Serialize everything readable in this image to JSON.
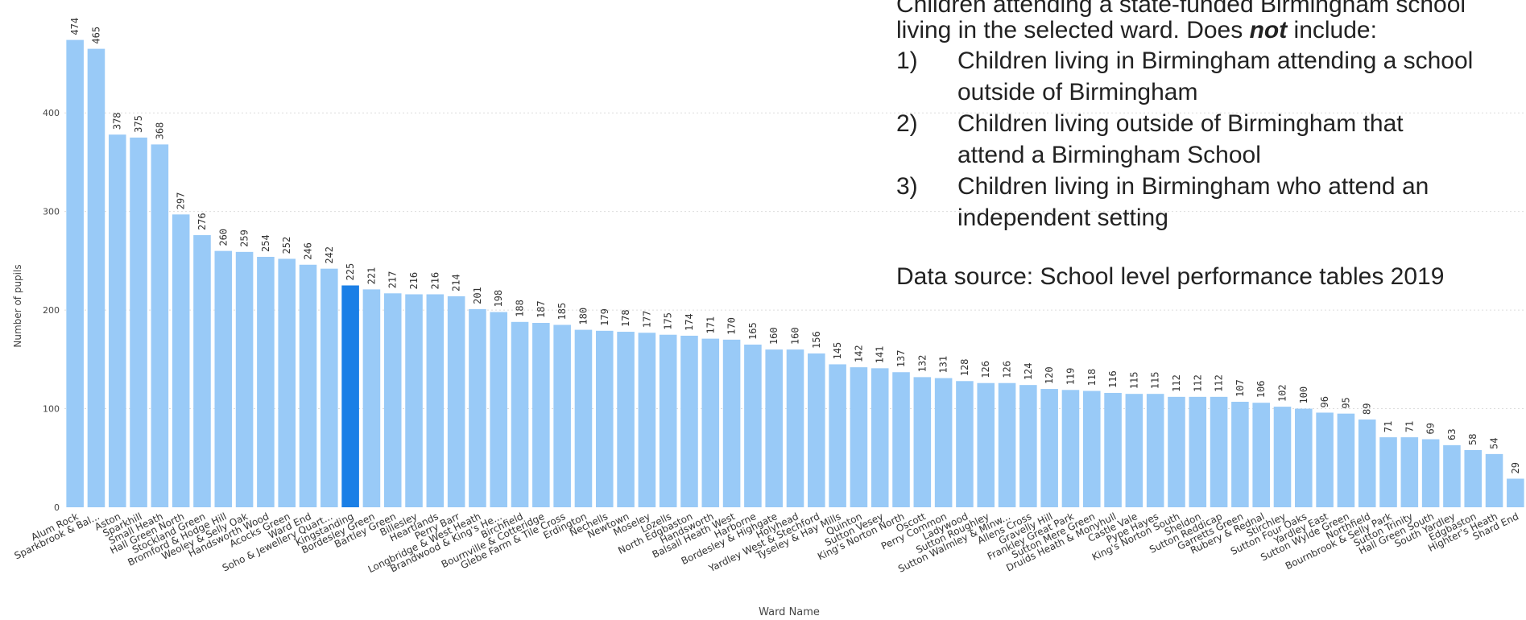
{
  "chart_data": {
    "type": "bar",
    "xlabel": "Ward Name",
    "ylabel": "Number of pupils",
    "ylim": [
      0,
      490
    ],
    "yticks": [
      0,
      100,
      200,
      300,
      400
    ],
    "grid": true,
    "highlighted_category": "Kingstanding",
    "colors": {
      "bar": "#99CAF7",
      "highlight": "#1A7FE6",
      "grid": "#DDDDDD",
      "text": "#444444"
    },
    "categories": [
      "Alum Rock",
      "Sparkbrook & Bal...",
      "Aston",
      "Sparkhill",
      "Small Heath",
      "Hall Green North",
      "Stockland Green",
      "Bromford & Hodge Hill",
      "Weoley & Selly Oak",
      "Handsworth Wood",
      "Acocks Green",
      "Ward End",
      "Soho & Jewellery Quart...",
      "Kingstanding",
      "Bordesley Green",
      "Bartley Green",
      "Billesley",
      "Heartlands",
      "Perry Barr",
      "Longbridge & West Heath",
      "Brandwood & King's He...",
      "Birchfield",
      "Bournville & Cotteridge",
      "Glebe Farm & Tile Cross",
      "Erdington",
      "Nechells",
      "Newtown",
      "Moseley",
      "Lozells",
      "North Edgbaston",
      "Handsworth",
      "Balsall Heath West",
      "Harborne",
      "Bordesley & Highgate",
      "Holyhead",
      "Yardley West & Stechford",
      "Tyseley & Hay Mills",
      "Quinton",
      "Sutton Vesey",
      "King's Norton North",
      "Oscott",
      "Perry Common",
      "Ladywood",
      "Sutton Roughley",
      "Sutton Walmley & Minw...",
      "Allens Cross",
      "Gravelly Hill",
      "Frankley Great Park",
      "Sutton Mere Green",
      "Druids Heath & Monyhull",
      "Castle Vale",
      "Pype Hayes",
      "King's Norton South",
      "Sheldon",
      "Sutton Reddicap",
      "Garretts Green",
      "Rubery & Rednal",
      "Stirchley",
      "Sutton Four Oaks",
      "Yardley East",
      "Sutton Wylde Green",
      "Northfield",
      "Bournbrook & Selly Park",
      "Sutton Trinity",
      "Hall Green South",
      "South Yardley",
      "Edgbaston",
      "Highter's Heath",
      "Shard End"
    ],
    "values": [
      474,
      465,
      378,
      375,
      368,
      297,
      276,
      260,
      259,
      254,
      252,
      246,
      242,
      225,
      221,
      217,
      216,
      216,
      214,
      201,
      198,
      188,
      187,
      185,
      180,
      179,
      178,
      177,
      175,
      174,
      171,
      170,
      165,
      160,
      160,
      156,
      145,
      142,
      141,
      137,
      132,
      131,
      128,
      126,
      126,
      124,
      120,
      119,
      118,
      116,
      115,
      115,
      112,
      112,
      112,
      107,
      106,
      102,
      100,
      96,
      95,
      89,
      71,
      71,
      69,
      63,
      58,
      54,
      29
    ]
  },
  "annotation": {
    "intro_line1": "Children attending a state-funded Birmingham school",
    "intro_line2_pre": "living in the selected ward. Does ",
    "intro_line2_em": "not",
    "intro_line2_post": " include:",
    "items": [
      {
        "num": "1)",
        "line1": "Children living in Birmingham attending a school",
        "line2": "outside of Birmingham"
      },
      {
        "num": "2)",
        "line1": "Children living outside of Birmingham that",
        "line2": "attend a Birmingham School"
      },
      {
        "num": "3)",
        "line1": "Children living in Birmingham who attend an",
        "line2": "independent setting"
      }
    ],
    "source": "Data source: School level performance tables 2019"
  }
}
